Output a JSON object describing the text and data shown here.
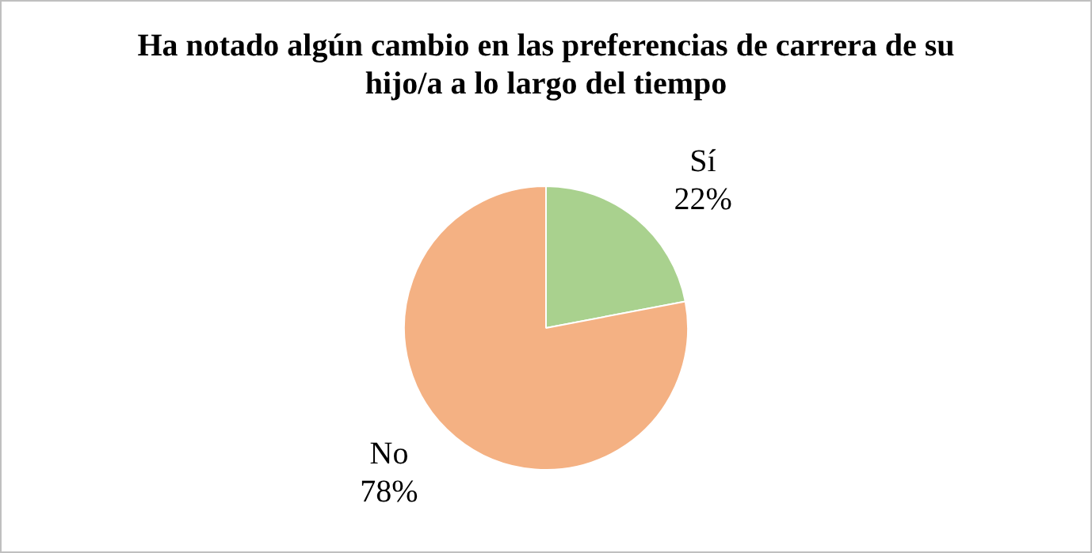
{
  "chart_data": {
    "type": "pie",
    "title": "Ha notado algún cambio en las preferencias de carrera de su hijo/a a lo largo del tiempo",
    "categories": [
      "Sí",
      "No"
    ],
    "values": [
      22,
      78
    ],
    "value_labels": [
      "22%",
      "78%"
    ],
    "colors": [
      "#a9d18e",
      "#f4b183"
    ],
    "legend": false
  }
}
